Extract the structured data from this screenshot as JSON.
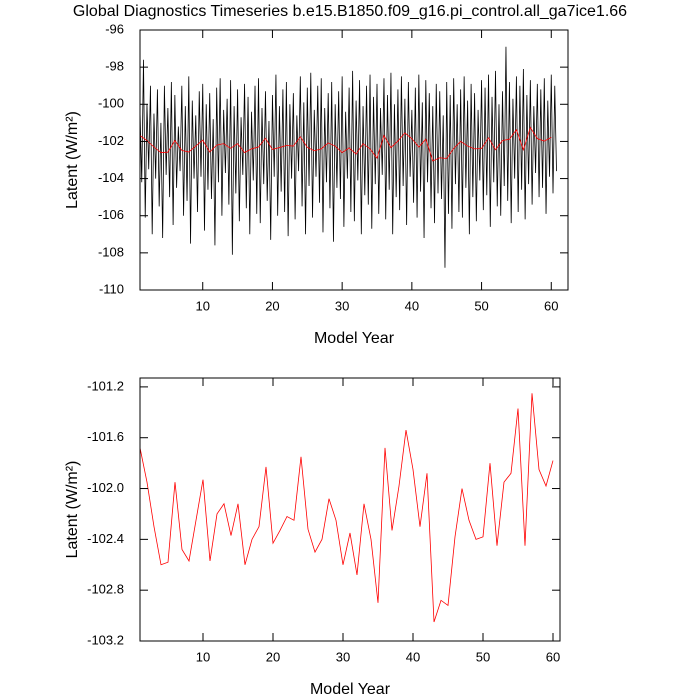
{
  "chart_data": [
    {
      "type": "line",
      "title": "Global Diagnostics Timeseries b.e15.B1850.f09_g16.pi_control.all_ga7ice1.66",
      "xlabel": "Model Year",
      "ylabel": "Latent (W/m²)",
      "xlim": [
        1,
        62.4
      ],
      "xticks": [
        10,
        20,
        30,
        40,
        50,
        60
      ],
      "ylim": [
        -110,
        -96
      ],
      "yticks": [
        -110,
        -108,
        -106,
        -104,
        -102,
        -100,
        -98,
        -96
      ],
      "series": [
        {
          "color": "#000000",
          "x": [
            1,
            1.25,
            1.5,
            1.75,
            2,
            2.25,
            2.5,
            2.75,
            3,
            3.25,
            3.5,
            3.75,
            4,
            4.25,
            4.5,
            4.75,
            5,
            5.25,
            5.5,
            5.75,
            6,
            6.25,
            6.5,
            6.75,
            7,
            7.25,
            7.5,
            7.75,
            8,
            8.25,
            8.5,
            8.75,
            9,
            9.25,
            9.5,
            9.75,
            10,
            10.25,
            10.5,
            10.75,
            11,
            11.25,
            11.5,
            11.75,
            12,
            12.25,
            12.5,
            12.75,
            13,
            13.25,
            13.5,
            13.75,
            14,
            14.25,
            14.5,
            14.75,
            15,
            15.25,
            15.5,
            15.75,
            16,
            16.25,
            16.5,
            16.75,
            17,
            17.25,
            17.5,
            17.75,
            18,
            18.25,
            18.5,
            18.75,
            19,
            19.25,
            19.5,
            19.75,
            20,
            20.25,
            20.5,
            20.75,
            21,
            21.25,
            21.5,
            21.75,
            22,
            22.25,
            22.5,
            22.75,
            23,
            23.25,
            23.5,
            23.75,
            24,
            24.25,
            24.5,
            24.75,
            25,
            25.25,
            25.5,
            25.75,
            26,
            26.25,
            26.5,
            26.75,
            27,
            27.25,
            27.5,
            27.75,
            28,
            28.25,
            28.5,
            28.75,
            29,
            29.25,
            29.5,
            29.75,
            30,
            30.25,
            30.5,
            30.75,
            31,
            31.25,
            31.5,
            31.75,
            32,
            32.25,
            32.5,
            32.75,
            33,
            33.25,
            33.5,
            33.75,
            34,
            34.25,
            34.5,
            34.75,
            35,
            35.25,
            35.5,
            35.75,
            36,
            36.25,
            36.5,
            36.75,
            37,
            37.25,
            37.5,
            37.75,
            38,
            38.25,
            38.5,
            38.75,
            39,
            39.25,
            39.5,
            39.75,
            40,
            40.25,
            40.5,
            40.75,
            41,
            41.25,
            41.5,
            41.75,
            42,
            42.25,
            42.5,
            42.75,
            43,
            43.25,
            43.5,
            43.75,
            44,
            44.25,
            44.5,
            44.75,
            45,
            45.25,
            45.5,
            45.75,
            46,
            46.25,
            46.5,
            46.75,
            47,
            47.25,
            47.5,
            47.75,
            48,
            48.25,
            48.5,
            48.75,
            49,
            49.25,
            49.5,
            49.75,
            50,
            50.25,
            50.5,
            50.75,
            51,
            51.25,
            51.5,
            51.75,
            52,
            52.25,
            52.5,
            52.75,
            53,
            53.25,
            53.5,
            53.75,
            54,
            54.25,
            54.5,
            54.75,
            55,
            55.25,
            55.5,
            55.75,
            56,
            56.25,
            56.5,
            56.75,
            57,
            57.25,
            57.5,
            57.75,
            58,
            58.25,
            58.5,
            58.75,
            59,
            59.25,
            59.5,
            59.75,
            60,
            60.25,
            60.5,
            60.75
          ],
          "values": [
            -100.3,
            -104.2,
            -97.6,
            -106.1,
            -100.0,
            -103.5,
            -99.0,
            -107.0,
            -100.5,
            -104.0,
            -99.2,
            -105.5,
            -101.0,
            -107.2,
            -99.0,
            -103.8,
            -100.2,
            -105.0,
            -98.8,
            -106.5,
            -99.5,
            -104.5,
            -101.2,
            -103.6,
            -99.0,
            -106.0,
            -100.1,
            -105.2,
            -98.5,
            -107.5,
            -99.8,
            -104.0,
            -100.6,
            -105.8,
            -99.3,
            -103.9,
            -98.9,
            -106.8,
            -100.0,
            -104.6,
            -99.4,
            -105.1,
            -100.8,
            -107.6,
            -99.1,
            -104.2,
            -98.6,
            -106.0,
            -100.3,
            -103.7,
            -99.7,
            -105.4,
            -98.7,
            -108.1,
            -100.1,
            -104.8,
            -99.2,
            -106.3,
            -100.7,
            -103.8,
            -98.9,
            -105.6,
            -99.6,
            -107.0,
            -100.4,
            -104.1,
            -99.0,
            -105.9,
            -98.6,
            -106.4,
            -100.2,
            -104.3,
            -99.3,
            -105.2,
            -100.9,
            -107.3,
            -99.5,
            -103.9,
            -98.4,
            -106.0,
            -100.1,
            -104.7,
            -99.2,
            -105.8,
            -98.8,
            -107.1,
            -100.0,
            -104.0,
            -99.4,
            -106.2,
            -100.6,
            -103.6,
            -98.5,
            -105.5,
            -99.9,
            -107.0,
            -99.1,
            -104.4,
            -98.3,
            -106.1,
            -100.3,
            -103.9,
            -99.0,
            -105.3,
            -98.6,
            -106.9,
            -100.2,
            -104.2,
            -99.4,
            -105.6,
            -98.8,
            -107.4,
            -100.0,
            -104.5,
            -99.3,
            -105.1,
            -98.5,
            -106.6,
            -100.4,
            -104.0,
            -99.1,
            -105.8,
            -98.2,
            -106.3,
            -99.8,
            -104.1,
            -98.7,
            -107.0,
            -100.1,
            -104.9,
            -99.0,
            -105.4,
            -98.4,
            -106.7,
            -99.6,
            -104.3,
            -98.9,
            -105.9,
            -100.2,
            -103.8,
            -98.6,
            -106.2,
            -99.5,
            -104.6,
            -98.3,
            -107.0,
            -100.0,
            -105.0,
            -99.2,
            -105.7,
            -98.5,
            -104.4,
            -99.7,
            -106.5,
            -98.8,
            -103.9,
            -100.3,
            -105.3,
            -99.1,
            -106.1,
            -98.4,
            -104.7,
            -99.9,
            -107.2,
            -98.7,
            -104.2,
            -99.4,
            -105.6,
            -100.1,
            -106.4,
            -98.9,
            -104.8,
            -99.3,
            -105.1,
            -100.6,
            -108.8,
            -98.8,
            -105.9,
            -99.5,
            -106.7,
            -98.6,
            -104.3,
            -100.0,
            -105.8,
            -99.2,
            -106.1,
            -98.5,
            -104.5,
            -99.8,
            -107.0,
            -98.9,
            -105.0,
            -99.4,
            -106.3,
            -100.3,
            -104.1,
            -98.7,
            -105.7,
            -99.1,
            -104.9,
            -98.4,
            -106.6,
            -99.6,
            -104.2,
            -98.2,
            -105.5,
            -100.0,
            -106.0,
            -99.3,
            -104.4,
            -96.9,
            -105.2,
            -98.8,
            -106.4,
            -99.7,
            -104.0,
            -98.5,
            -105.8,
            -99.0,
            -104.6,
            -98.1,
            -106.2,
            -99.5,
            -104.3,
            -98.7,
            -105.4,
            -100.1,
            -103.7,
            -98.9,
            -105.0,
            -99.2,
            -104.5,
            -98.6,
            -105.9,
            -99.8,
            -103.9,
            -98.4,
            -104.8,
            -99.0,
            -103.6
          ]
        },
        {
          "color": "#ff0000",
          "x": [
            1,
            2,
            3,
            4,
            5,
            6,
            7,
            8,
            9,
            10,
            11,
            12,
            13,
            14,
            15,
            16,
            17,
            18,
            19,
            20,
            21,
            22,
            23,
            24,
            25,
            26,
            27,
            28,
            29,
            30,
            31,
            32,
            33,
            34,
            35,
            36,
            37,
            38,
            39,
            40,
            41,
            42,
            43,
            44,
            45,
            46,
            47,
            48,
            49,
            50,
            51,
            52,
            53,
            54,
            55,
            56,
            57,
            58,
            59,
            60
          ],
          "values": [
            -101.68,
            -101.95,
            -102.3,
            -102.6,
            -102.58,
            -101.95,
            -102.48,
            -102.57,
            -102.25,
            -101.93,
            -102.57,
            -102.2,
            -102.12,
            -102.37,
            -102.12,
            -102.6,
            -102.4,
            -102.3,
            -101.83,
            -102.43,
            -102.33,
            -102.22,
            -102.25,
            -101.75,
            -102.32,
            -102.5,
            -102.4,
            -102.08,
            -102.25,
            -102.6,
            -102.35,
            -102.68,
            -102.12,
            -102.4,
            -102.9,
            -101.68,
            -102.33,
            -101.98,
            -101.54,
            -101.85,
            -102.3,
            -101.88,
            -103.05,
            -102.88,
            -102.92,
            -102.38,
            -102.0,
            -102.25,
            -102.4,
            -102.38,
            -101.8,
            -102.45,
            -101.95,
            -101.88,
            -101.37,
            -102.45,
            -101.25,
            -101.85,
            -101.98,
            -101.78
          ]
        }
      ]
    },
    {
      "type": "line",
      "xlabel": "Model Year",
      "ylabel": "Latent (W/m²)",
      "xlim": [
        1,
        61
      ],
      "xticks": [
        10,
        20,
        30,
        40,
        50,
        60
      ],
      "ylim": [
        -103.2,
        -101.13
      ],
      "yticks": [
        -103.2,
        -102.8,
        -102.4,
        {
          "value": -102.0,
          "label": "-102.0"
        },
        -101.6,
        -101.2
      ],
      "series": [
        {
          "color": "#ff0000",
          "x": [
            1,
            2,
            3,
            4,
            5,
            6,
            7,
            8,
            9,
            10,
            11,
            12,
            13,
            14,
            15,
            16,
            17,
            18,
            19,
            20,
            21,
            22,
            23,
            24,
            25,
            26,
            27,
            28,
            29,
            30,
            31,
            32,
            33,
            34,
            35,
            36,
            37,
            38,
            39,
            40,
            41,
            42,
            43,
            44,
            45,
            46,
            47,
            48,
            49,
            50,
            51,
            52,
            53,
            54,
            55,
            56,
            57,
            58,
            59,
            60
          ],
          "values": [
            -101.68,
            -101.95,
            -102.3,
            -102.6,
            -102.58,
            -101.95,
            -102.48,
            -102.57,
            -102.25,
            -101.93,
            -102.57,
            -102.2,
            -102.12,
            -102.37,
            -102.12,
            -102.6,
            -102.4,
            -102.3,
            -101.83,
            -102.43,
            -102.33,
            -102.22,
            -102.25,
            -101.75,
            -102.32,
            -102.5,
            -102.4,
            -102.08,
            -102.25,
            -102.6,
            -102.35,
            -102.68,
            -102.12,
            -102.4,
            -102.9,
            -101.68,
            -102.33,
            -101.98,
            -101.54,
            -101.85,
            -102.3,
            -101.88,
            -103.05,
            -102.88,
            -102.92,
            -102.38,
            -102.0,
            -102.25,
            -102.4,
            -102.38,
            -101.8,
            -102.45,
            -101.95,
            -101.88,
            -101.37,
            -102.45,
            -101.25,
            -101.85,
            -101.98,
            -101.78
          ]
        }
      ]
    }
  ]
}
